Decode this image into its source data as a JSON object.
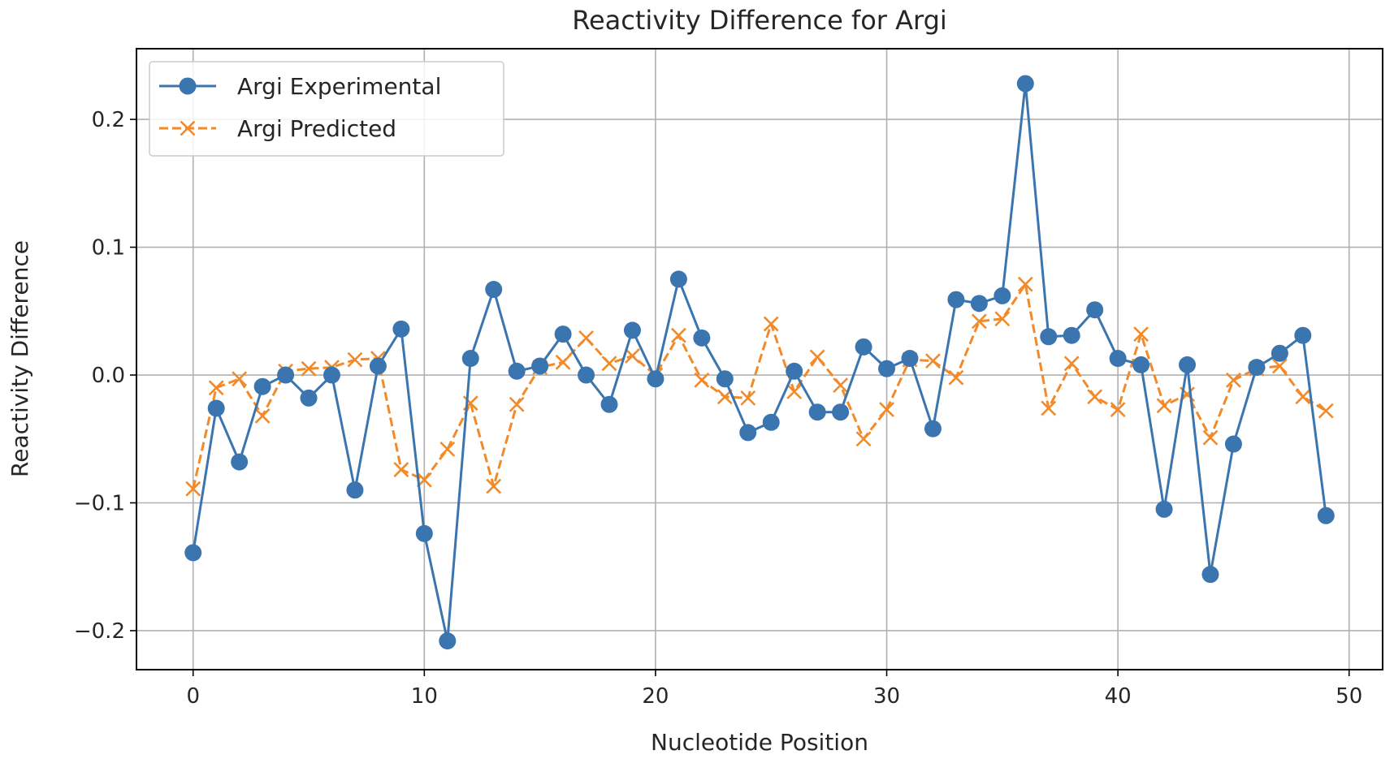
{
  "chart_data": {
    "type": "line",
    "title": "Reactivity Difference for Argi",
    "xlabel": "Nucleotide Position",
    "ylabel": "Reactivity Difference",
    "xlim": [
      -2.45,
      51.45
    ],
    "ylim": [
      -0.2305,
      0.2553
    ],
    "xticks": [
      0,
      10,
      20,
      30,
      40,
      50
    ],
    "xtick_labels": [
      "0",
      "10",
      "20",
      "30",
      "40",
      "50"
    ],
    "yticks": [
      -0.2,
      -0.1,
      0.0,
      0.1,
      0.2
    ],
    "ytick_labels": [
      "−0.2",
      "−0.1",
      "0.0",
      "0.1",
      "0.2"
    ],
    "grid": true,
    "legend_position": "upper-left",
    "x": [
      0,
      1,
      2,
      3,
      4,
      5,
      6,
      7,
      8,
      9,
      10,
      11,
      12,
      13,
      14,
      15,
      16,
      17,
      18,
      19,
      20,
      21,
      22,
      23,
      24,
      25,
      26,
      27,
      28,
      29,
      30,
      31,
      32,
      33,
      34,
      35,
      36,
      37,
      38,
      39,
      40,
      41,
      42,
      43,
      44,
      45,
      46,
      47,
      48,
      49
    ],
    "series": [
      {
        "name": "Argi Experimental",
        "color": "#3a75b0",
        "line_style": "solid",
        "marker": "circle",
        "values": [
          -0.139,
          -0.026,
          -0.068,
          -0.009,
          0.0,
          -0.018,
          0.0,
          -0.09,
          0.007,
          0.036,
          -0.124,
          -0.208,
          0.013,
          0.067,
          0.003,
          0.007,
          0.032,
          0.0,
          -0.023,
          0.035,
          -0.003,
          0.075,
          0.029,
          -0.003,
          -0.045,
          -0.037,
          0.003,
          -0.029,
          -0.029,
          0.022,
          0.005,
          0.013,
          -0.042,
          0.059,
          0.056,
          0.062,
          0.228,
          0.03,
          0.031,
          0.051,
          0.013,
          0.008,
          -0.105,
          0.008,
          -0.156,
          -0.054,
          0.006,
          0.017,
          0.031,
          -0.11
        ]
      },
      {
        "name": "Argi Predicted",
        "color": "#f28a2a",
        "line_style": "dashed",
        "marker": "x",
        "values": [
          -0.089,
          -0.01,
          -0.003,
          -0.032,
          0.003,
          0.005,
          0.006,
          0.012,
          0.013,
          -0.074,
          -0.082,
          -0.058,
          -0.022,
          -0.087,
          -0.023,
          0.006,
          0.01,
          0.029,
          0.009,
          0.015,
          0.0,
          0.031,
          -0.004,
          -0.017,
          -0.018,
          0.04,
          -0.013,
          0.014,
          -0.008,
          -0.05,
          -0.027,
          0.012,
          0.011,
          -0.002,
          0.042,
          0.044,
          0.071,
          -0.026,
          0.009,
          -0.017,
          -0.027,
          0.032,
          -0.024,
          -0.015,
          -0.049,
          -0.004,
          0.005,
          0.007,
          -0.017,
          -0.028
        ]
      }
    ]
  }
}
